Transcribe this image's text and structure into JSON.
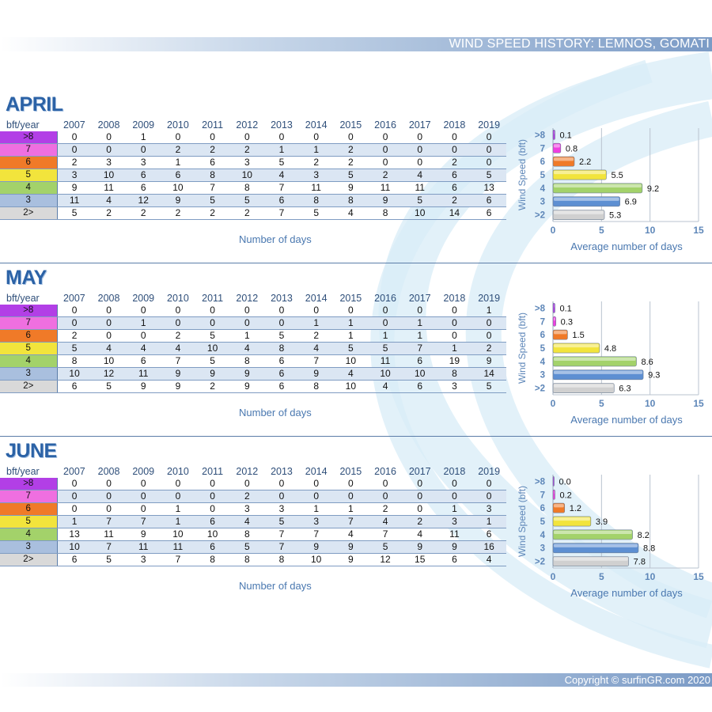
{
  "header": {
    "title": "WIND SPEED HISTORY: LEMNOS, GOMATI"
  },
  "footer": {
    "copyright": "Copyright © surfinGR.com 2020"
  },
  "corner_label": "bft/year",
  "years": [
    "2007",
    "2008",
    "2009",
    "2010",
    "2011",
    "2012",
    "2013",
    "2014",
    "2015",
    "2016",
    "2017",
    "2018",
    "2019"
  ],
  "row_labels": [
    ">8",
    "7",
    "6",
    "5",
    "4",
    "3",
    "2>"
  ],
  "row_colors": [
    "#b23fe6",
    "#ef6fe0",
    "#f07a28",
    "#f2e43c",
    "#a3d26a",
    "#a9bfde",
    "#d9d9d9"
  ],
  "table_footer": "Number of days",
  "months": [
    {
      "name": "APRIL",
      "rows": [
        [
          0,
          0,
          1,
          0,
          0,
          0,
          0,
          0,
          0,
          0,
          0,
          0,
          0
        ],
        [
          0,
          0,
          0,
          2,
          2,
          2,
          1,
          1,
          2,
          0,
          0,
          0,
          0
        ],
        [
          2,
          3,
          3,
          1,
          6,
          3,
          5,
          2,
          2,
          0,
          0,
          2,
          0
        ],
        [
          3,
          10,
          6,
          6,
          8,
          10,
          4,
          3,
          5,
          2,
          4,
          6,
          5
        ],
        [
          9,
          11,
          6,
          10,
          7,
          8,
          7,
          11,
          9,
          11,
          11,
          6,
          13
        ],
        [
          11,
          4,
          12,
          9,
          5,
          5,
          6,
          8,
          8,
          9,
          5,
          2,
          6
        ],
        [
          5,
          2,
          2,
          2,
          2,
          2,
          7,
          5,
          4,
          8,
          10,
          14,
          6
        ]
      ]
    },
    {
      "name": "MAY",
      "rows": [
        [
          0,
          0,
          0,
          0,
          0,
          0,
          0,
          0,
          0,
          0,
          0,
          0,
          1
        ],
        [
          0,
          0,
          1,
          0,
          0,
          0,
          0,
          1,
          1,
          0,
          1,
          0,
          0
        ],
        [
          2,
          0,
          0,
          2,
          5,
          1,
          5,
          2,
          1,
          1,
          1,
          0,
          0
        ],
        [
          5,
          4,
          4,
          4,
          10,
          4,
          8,
          4,
          5,
          5,
          7,
          1,
          2
        ],
        [
          8,
          10,
          6,
          7,
          5,
          8,
          6,
          7,
          10,
          11,
          6,
          19,
          9
        ],
        [
          10,
          12,
          11,
          9,
          9,
          9,
          6,
          9,
          4,
          10,
          10,
          8,
          14
        ],
        [
          6,
          5,
          9,
          9,
          2,
          9,
          6,
          8,
          10,
          4,
          6,
          3,
          5
        ]
      ]
    },
    {
      "name": "JUNE",
      "rows": [
        [
          0,
          0,
          0,
          0,
          0,
          0,
          0,
          0,
          0,
          0,
          0,
          0,
          0
        ],
        [
          0,
          0,
          0,
          0,
          0,
          2,
          0,
          0,
          0,
          0,
          0,
          0,
          0
        ],
        [
          0,
          0,
          0,
          1,
          0,
          3,
          3,
          1,
          1,
          2,
          0,
          1,
          3
        ],
        [
          1,
          7,
          7,
          1,
          6,
          4,
          5,
          3,
          7,
          4,
          2,
          3,
          1
        ],
        [
          13,
          11,
          9,
          10,
          10,
          8,
          7,
          7,
          4,
          7,
          4,
          11,
          6
        ],
        [
          10,
          7,
          11,
          11,
          6,
          5,
          7,
          9,
          9,
          5,
          9,
          9,
          16
        ],
        [
          6,
          5,
          3,
          7,
          8,
          8,
          8,
          10,
          9,
          12,
          15,
          6,
          4
        ]
      ]
    }
  ],
  "chart_data": [
    {
      "type": "bar",
      "orientation": "horizontal",
      "categories": [
        ">8",
        "7",
        "6",
        "5",
        "4",
        "3",
        ">2"
      ],
      "values": [
        0.1,
        0.8,
        2.2,
        5.5,
        9.2,
        6.9,
        5.3
      ],
      "ylabel": "Wind Speed (bft)",
      "xlabel": "Average number of days",
      "xlim": [
        0,
        15
      ],
      "xticks": [
        "0",
        "5",
        "10",
        "15"
      ],
      "bar_colors": [
        "#b23fe6",
        "#ef3fe0",
        "#f07a28",
        "#f2e43c",
        "#a3d26a",
        "#5d8fd2",
        "#d0d0d0"
      ],
      "grid": "vertical"
    },
    {
      "type": "bar",
      "orientation": "horizontal",
      "categories": [
        ">8",
        "7",
        "6",
        "5",
        "4",
        "3",
        ">2"
      ],
      "values": [
        0.1,
        0.3,
        1.5,
        4.8,
        8.6,
        9.3,
        6.3
      ],
      "ylabel": "Wind Speed (bft)",
      "xlabel": "Average number of days",
      "xlim": [
        0,
        15
      ],
      "xticks": [
        "0",
        "5",
        "10",
        "15"
      ],
      "bar_colors": [
        "#b23fe6",
        "#ef3fe0",
        "#f07a28",
        "#f2e43c",
        "#a3d26a",
        "#5d8fd2",
        "#d0d0d0"
      ],
      "grid": "vertical"
    },
    {
      "type": "bar",
      "orientation": "horizontal",
      "categories": [
        ">8",
        "7",
        "6",
        "5",
        "4",
        "3",
        ">2"
      ],
      "values": [
        0.0,
        0.2,
        1.2,
        3.9,
        8.2,
        8.8,
        7.8
      ],
      "ylabel": "Wind Speed (bft)",
      "xlabel": "Average number of days",
      "xlim": [
        0,
        15
      ],
      "xticks": [
        "0",
        "5",
        "10",
        "15"
      ],
      "bar_colors": [
        "#b23fe6",
        "#ef3fe0",
        "#f07a28",
        "#f2e43c",
        "#a3d26a",
        "#5d8fd2",
        "#d0d0d0"
      ],
      "grid": "vertical"
    }
  ]
}
